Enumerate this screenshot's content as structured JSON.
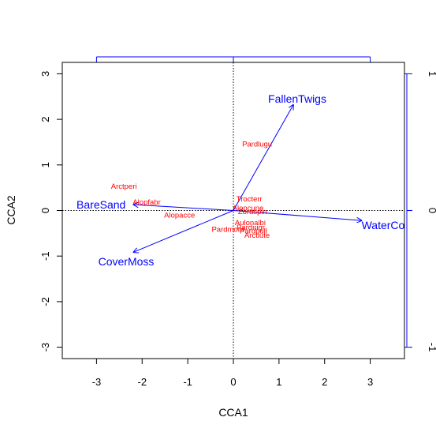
{
  "chart_data": {
    "type": "scatter",
    "title": "",
    "xlabel": "CCA1",
    "ylabel": "CCA2",
    "xlim": [
      -3.75,
      3.75
    ],
    "ylim": [
      -3.25,
      3.25
    ],
    "xticks": [
      "-3",
      "-2",
      "-1",
      "0",
      "1",
      "2",
      "3"
    ],
    "yticks": [
      "-3",
      "-2",
      "-1",
      "0",
      "1",
      "2",
      "3"
    ],
    "secondary_axis": {
      "top_ticks": [
        -3,
        0,
        3
      ],
      "right_ticks": [
        {
          "value": -3,
          "label": "-1"
        },
        {
          "value": 0,
          "label": "0"
        },
        {
          "value": 3,
          "label": "1"
        }
      ]
    },
    "species_color": "#ff0000",
    "env_color": "#0000ff",
    "species": [
      {
        "name": "Arctperi",
        "x": -2.4,
        "y": 0.53
      },
      {
        "name": "Alopfabr",
        "x": -1.9,
        "y": 0.18
      },
      {
        "name": "Alopacce",
        "x": -1.18,
        "y": -0.1
      },
      {
        "name": "Pardlugu",
        "x": 0.52,
        "y": 1.46
      },
      {
        "name": "Trocterr",
        "x": 0.35,
        "y": 0.25
      },
      {
        "name": "Alopcune",
        "x": 0.32,
        "y": 0.05
      },
      {
        "name": "Zoraspin",
        "x": 0.42,
        "y": -0.03
      },
      {
        "name": "Aulonalbi",
        "x": 0.37,
        "y": -0.27
      },
      {
        "name": "Pardnigr",
        "x": 0.38,
        "y": -0.37
      },
      {
        "name": "Pardmont",
        "x": -0.12,
        "y": -0.42
      },
      {
        "name": "Pardpull",
        "x": 0.44,
        "y": -0.45
      },
      {
        "name": "Arctlute",
        "x": 0.52,
        "y": -0.55
      }
    ],
    "env_vectors": [
      {
        "name": "FallenTwigs",
        "x": 1.32,
        "y": 2.33,
        "label_x": 1.4,
        "label_y": 2.45
      },
      {
        "name": "BareSand",
        "x": -2.2,
        "y": 0.13,
        "label_x": -2.9,
        "label_y": 0.13
      },
      {
        "name": "WaterCon",
        "x": 2.82,
        "y": -0.22,
        "label_x": 3.35,
        "label_y": -0.32
      },
      {
        "name": "CoverMoss",
        "x": -2.2,
        "y": -0.92,
        "label_x": -2.35,
        "label_y": -1.12
      }
    ]
  }
}
